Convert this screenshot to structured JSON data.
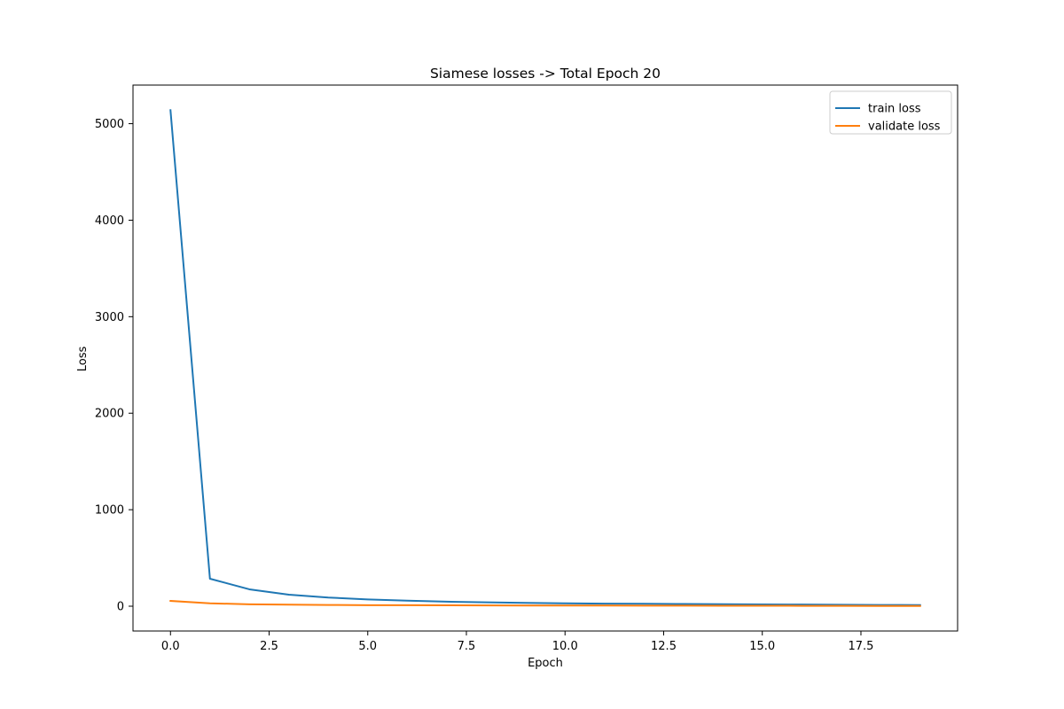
{
  "chart_data": {
    "type": "line",
    "title": "Siamese losses -> Total Epoch 20",
    "xlabel": "Epoch",
    "ylabel": "Loss",
    "xlim": [
      -0.95,
      19.95
    ],
    "ylim": [
      -257,
      5400
    ],
    "xticks": [
      0.0,
      2.5,
      5.0,
      7.5,
      10.0,
      12.5,
      15.0,
      17.5
    ],
    "xtick_labels": [
      "0.0",
      "2.5",
      "5.0",
      "7.5",
      "10.0",
      "12.5",
      "15.0",
      "17.5"
    ],
    "yticks": [
      0,
      1000,
      2000,
      3000,
      4000,
      5000
    ],
    "ytick_labels": [
      "0",
      "1000",
      "2000",
      "3000",
      "4000",
      "5000"
    ],
    "grid": false,
    "legend_position": "top-right",
    "x": [
      0,
      1,
      2,
      3,
      4,
      5,
      6,
      7,
      8,
      9,
      10,
      11,
      12,
      13,
      14,
      15,
      16,
      17,
      18,
      19
    ],
    "series": [
      {
        "name": "train loss",
        "color": "#1f77b4",
        "values": [
          5140,
          285,
          175,
          120,
          90,
          70,
          57,
          47,
          40,
          34,
          30,
          27,
          25,
          23,
          21,
          19,
          17,
          15,
          13,
          12
        ]
      },
      {
        "name": "validate loss",
        "color": "#ff7f0e",
        "values": [
          55,
          30,
          20,
          16,
          13,
          11,
          10,
          9,
          8,
          7.5,
          7,
          6.5,
          6,
          5.5,
          5,
          4.5,
          4,
          3.5,
          3,
          3
        ]
      }
    ]
  }
}
